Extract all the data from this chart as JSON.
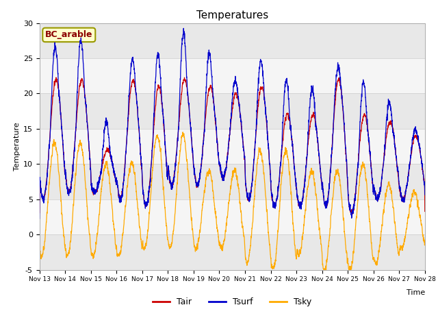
{
  "title": "Temperatures",
  "xlabel": "Time",
  "ylabel": "Temperature",
  "ylim": [
    -5,
    30
  ],
  "xlim": [
    0,
    360
  ],
  "annotation": "BC_arable",
  "legend": [
    "Tair",
    "Tsurf",
    "Tsky"
  ],
  "legend_colors": [
    "#cc0000",
    "#0000cc",
    "#ffaa00"
  ],
  "bg_color": "#ffffff",
  "band_colors": [
    "#e8e8e8",
    "#f5f5f5"
  ],
  "tick_labels": [
    "Nov 13",
    "Nov 14",
    "Nov 15",
    "Nov 16",
    "Nov 17",
    "Nov 18",
    "Nov 19",
    "Nov 20",
    "Nov 21",
    "Nov 22",
    "Nov 23",
    "Nov 24",
    "Nov 25",
    "Nov 26",
    "Nov 27",
    "Nov 28"
  ],
  "tick_positions": [
    0,
    24,
    48,
    72,
    96,
    120,
    144,
    168,
    192,
    216,
    240,
    264,
    288,
    312,
    336,
    360
  ],
  "yticks": [
    -5,
    0,
    5,
    10,
    15,
    20,
    25,
    30
  ]
}
